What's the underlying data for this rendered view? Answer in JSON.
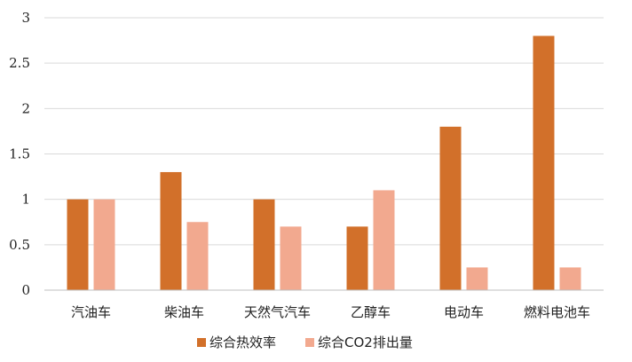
{
  "chart_data": {
    "type": "bar",
    "title": "",
    "xlabel": "",
    "ylabel": "",
    "categories": [
      "汽油车",
      "柴油车",
      "天然气汽车",
      "乙醇车",
      "电动车",
      "燃料电池车"
    ],
    "series": [
      {
        "name": "综合热效率",
        "values": [
          1.0,
          1.3,
          1.0,
          0.7,
          1.8,
          2.8
        ],
        "color": "#D2702A"
      },
      {
        "name": "综合CO2排出量",
        "values": [
          1.0,
          0.75,
          0.7,
          1.1,
          0.25,
          0.25
        ],
        "color": "#F2A98F"
      }
    ],
    "ylim": [
      0,
      3
    ],
    "yticks": [
      "0",
      "0.5",
      "1",
      "1.5",
      "2",
      "2.5",
      "3"
    ],
    "grid": true,
    "legend_position": "bottom",
    "colors": {
      "grid": "#D9D9D9",
      "axis": "#BFBFBF"
    }
  }
}
